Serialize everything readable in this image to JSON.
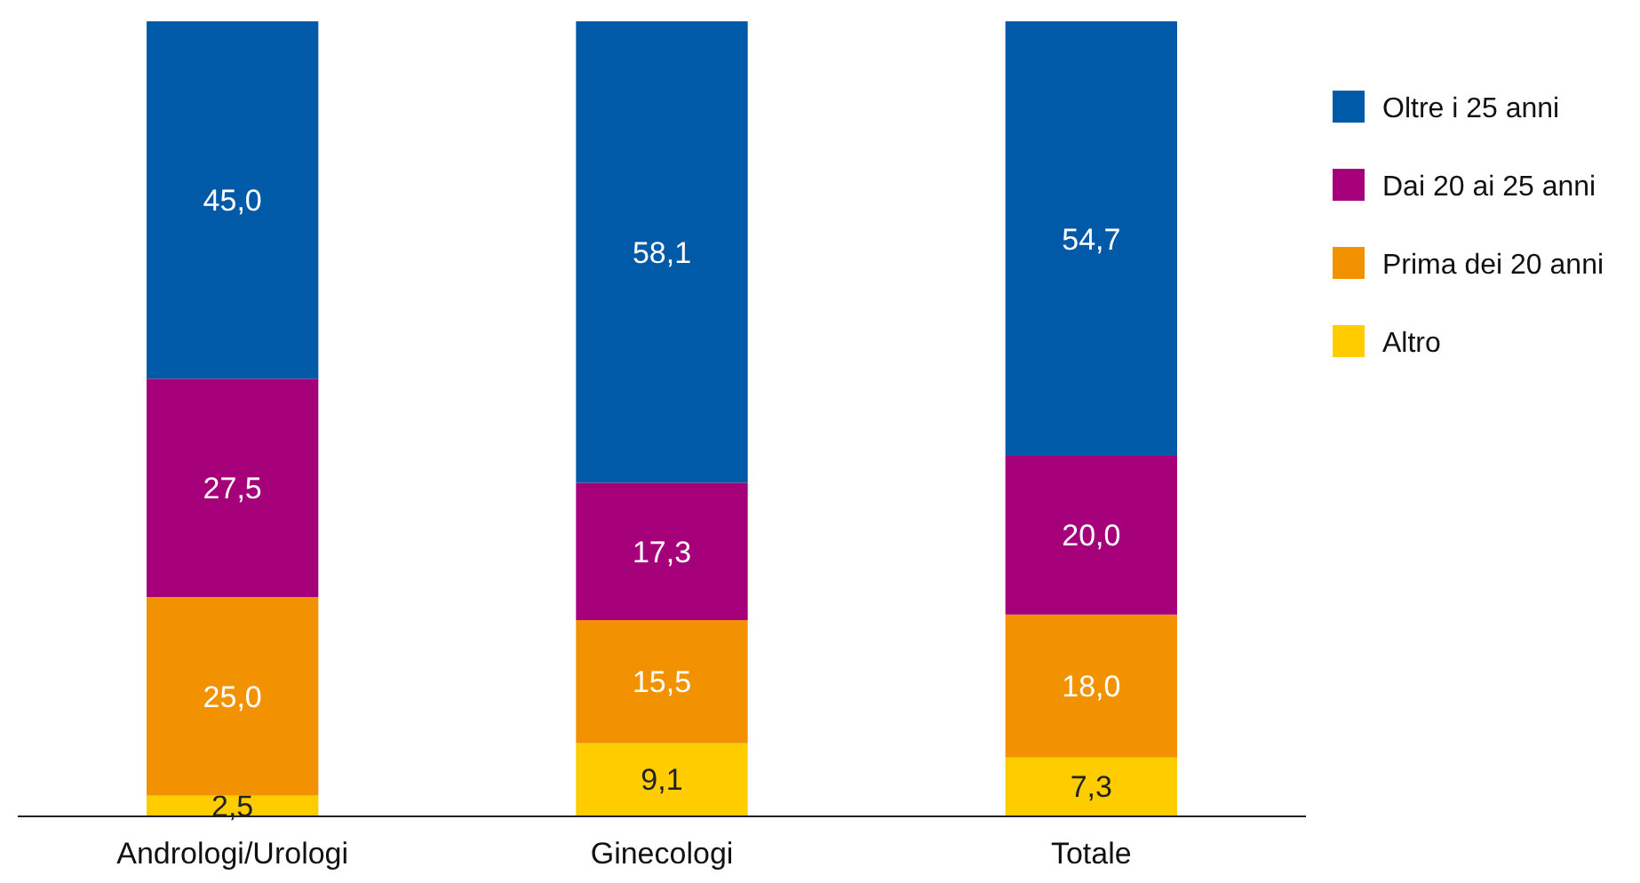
{
  "chart_data": {
    "type": "bar",
    "stacked": true,
    "legend": "top right",
    "categories": [
      "Andrologi/Urologi",
      "Ginecologi",
      "Totale"
    ],
    "series": [
      {
        "name": "Altro",
        "color": "#ffcc00",
        "values": [
          2.5,
          9.1,
          7.3
        ],
        "value_labels": [
          "2,5",
          "9,1",
          "7,3"
        ]
      },
      {
        "name": "Prima dei 20 anni",
        "color": "#f39200",
        "values": [
          25.0,
          15.5,
          18.0
        ],
        "value_labels": [
          "25,0",
          "15,5",
          "18,0"
        ]
      },
      {
        "name": "Dai 20 ai 25 anni",
        "color": "#a5007a",
        "values": [
          27.5,
          17.3,
          20.0
        ],
        "value_labels": [
          "27,5",
          "17,3",
          "20,0"
        ]
      },
      {
        "name": "Oltre i 25 anni",
        "color": "#005aa7",
        "values": [
          45.0,
          58.1,
          54.7
        ],
        "value_labels": [
          "45,0",
          "58,1",
          "54,7"
        ]
      }
    ]
  }
}
